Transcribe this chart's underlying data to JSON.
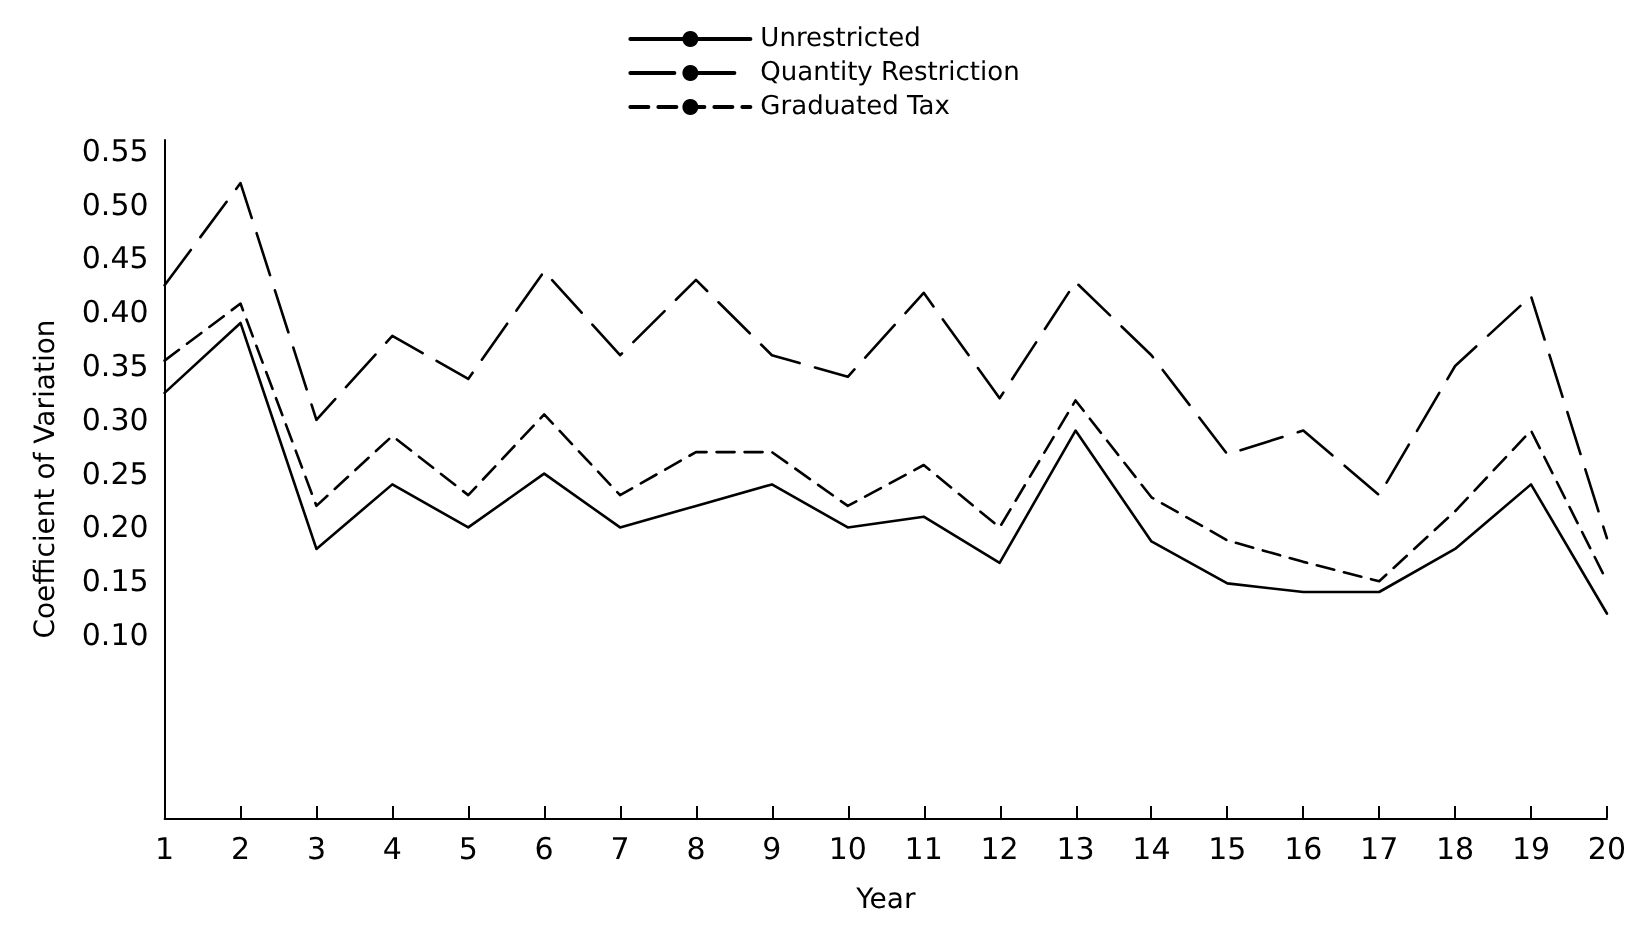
{
  "chart_data": {
    "type": "line",
    "xlabel": "Year",
    "ylabel": "Coefficient of Variation",
    "x": [
      1,
      2,
      3,
      4,
      5,
      6,
      7,
      8,
      9,
      10,
      11,
      12,
      13,
      14,
      15,
      16,
      17,
      18,
      19,
      20
    ],
    "series": [
      {
        "name": "Unrestricted",
        "color": "#000000",
        "line_style": "solid",
        "values": [
          0.325,
          0.39,
          0.18,
          0.24,
          0.2,
          0.25,
          0.2,
          0.22,
          0.24,
          0.2,
          0.21,
          0.167,
          0.29,
          0.187,
          0.148,
          0.14,
          0.14,
          0.18,
          0.24,
          0.12
        ]
      },
      {
        "name": "Quantity Restriction",
        "color": "#000000",
        "line_style": "dashed",
        "values": [
          0.425,
          0.52,
          0.3,
          0.378,
          0.338,
          0.438,
          0.36,
          0.43,
          0.36,
          0.34,
          0.418,
          0.32,
          0.428,
          0.36,
          0.268,
          0.29,
          0.23,
          0.35,
          0.415,
          0.19
        ]
      },
      {
        "name": "Graduated Tax",
        "color": "#000000",
        "line_style": "dotted",
        "values": [
          0.355,
          0.408,
          0.22,
          0.285,
          0.23,
          0.305,
          0.23,
          0.27,
          0.27,
          0.22,
          0.258,
          0.2,
          0.318,
          0.228,
          0.188,
          0.168,
          0.15,
          0.215,
          0.29,
          0.15
        ]
      }
    ],
    "xlim": [
      1,
      20
    ],
    "xticks": [
      1,
      2,
      3,
      4,
      5,
      6,
      7,
      8,
      9,
      10,
      11,
      12,
      13,
      14,
      15,
      16,
      17,
      18,
      19,
      20
    ],
    "ylim": [
      -0.07,
      0.56
    ],
    "yticks": [
      {
        "value": 0.1,
        "label": "0.10"
      },
      {
        "value": 0.15,
        "label": "0.15"
      },
      {
        "value": 0.2,
        "label": "0.20"
      },
      {
        "value": 0.25,
        "label": "0.25"
      },
      {
        "value": 0.3,
        "label": "0.30"
      },
      {
        "value": 0.35,
        "label": "0.35"
      },
      {
        "value": 0.4,
        "label": "0.40"
      },
      {
        "value": 0.45,
        "label": "0.45"
      },
      {
        "value": 0.5,
        "label": "0.50"
      },
      {
        "value": 0.55,
        "label": "0.55"
      }
    ],
    "grid": false,
    "legend": "top",
    "marker": "none"
  }
}
